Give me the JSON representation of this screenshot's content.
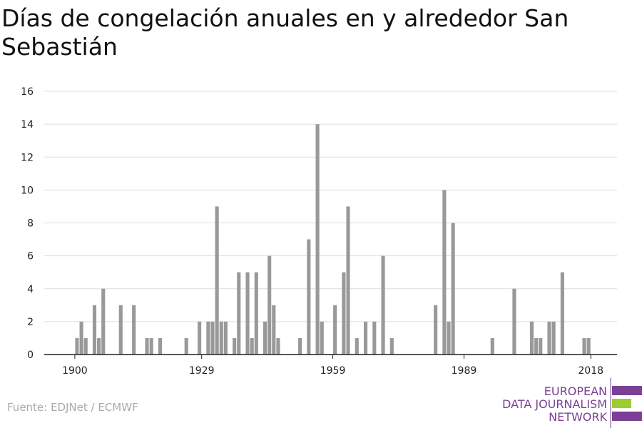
{
  "chart_data": {
    "type": "bar",
    "title": "Días de congelación anuales en y alrededor San Sebastián",
    "x": [
      1900,
      1901,
      1902,
      1904,
      1905,
      1906,
      1910,
      1913,
      1916,
      1917,
      1919,
      1925,
      1928,
      1930,
      1931,
      1932,
      1933,
      1934,
      1936,
      1937,
      1939,
      1940,
      1941,
      1943,
      1944,
      1945,
      1946,
      1951,
      1953,
      1955,
      1956,
      1959,
      1961,
      1962,
      1964,
      1966,
      1968,
      1970,
      1972,
      1982,
      1984,
      1985,
      1986,
      1995,
      2000,
      2004,
      2005,
      2006,
      2008,
      2009,
      2011,
      2016,
      2017
    ],
    "values": [
      1,
      2,
      1,
      3,
      1,
      4,
      3,
      3,
      1,
      1,
      1,
      1,
      2,
      2,
      2,
      9,
      2,
      2,
      1,
      5,
      5,
      1,
      5,
      2,
      6,
      3,
      1,
      1,
      7,
      14,
      2,
      3,
      5,
      9,
      1,
      2,
      2,
      6,
      1,
      3,
      10,
      2,
      8,
      1,
      4,
      2,
      1,
      1,
      2,
      2,
      5,
      1,
      1
    ],
    "color": "#999999",
    "xlim": [
      1893,
      2024
    ],
    "xticks": [
      1900,
      1929,
      1959,
      1989,
      2018
    ],
    "ylim": [
      0,
      16
    ],
    "yticks": [
      0,
      2,
      4,
      6,
      8,
      10,
      12,
      14,
      16
    ],
    "grid": true,
    "source": "Fuente: EDJNet / ECMWF",
    "logo": [
      "EUROPEAN",
      "DATA JOURNALISM",
      "NETWORK"
    ]
  }
}
